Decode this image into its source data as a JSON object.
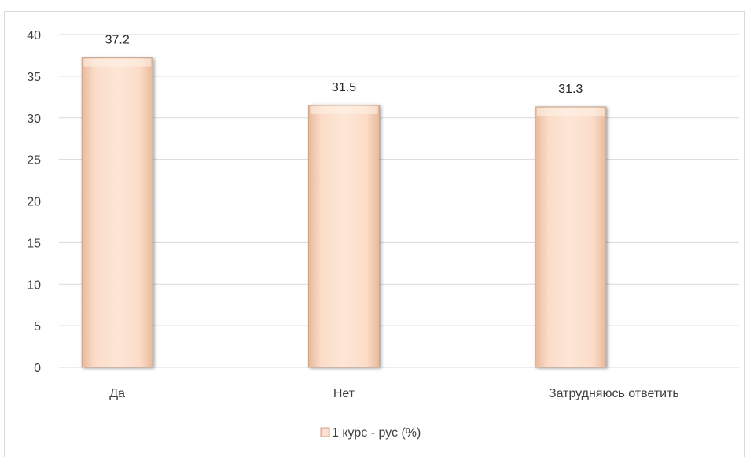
{
  "chart_data": {
    "type": "bar",
    "categories": [
      "Да",
      "Нет",
      "Затрудняюсь ответить"
    ],
    "series": [
      {
        "name": "1 курс  - рус (%)",
        "values": [
          37.2,
          31.5,
          31.3
        ]
      }
    ],
    "ylim": [
      0,
      40
    ],
    "yticks": [
      0,
      5,
      10,
      15,
      20,
      25,
      30,
      35,
      40
    ],
    "grid": true,
    "legend": "bottom",
    "colors": {
      "bar_fill": "#fbd9c4",
      "bar_edge": "#c9a58c",
      "grid": "#d9d9d9"
    }
  }
}
